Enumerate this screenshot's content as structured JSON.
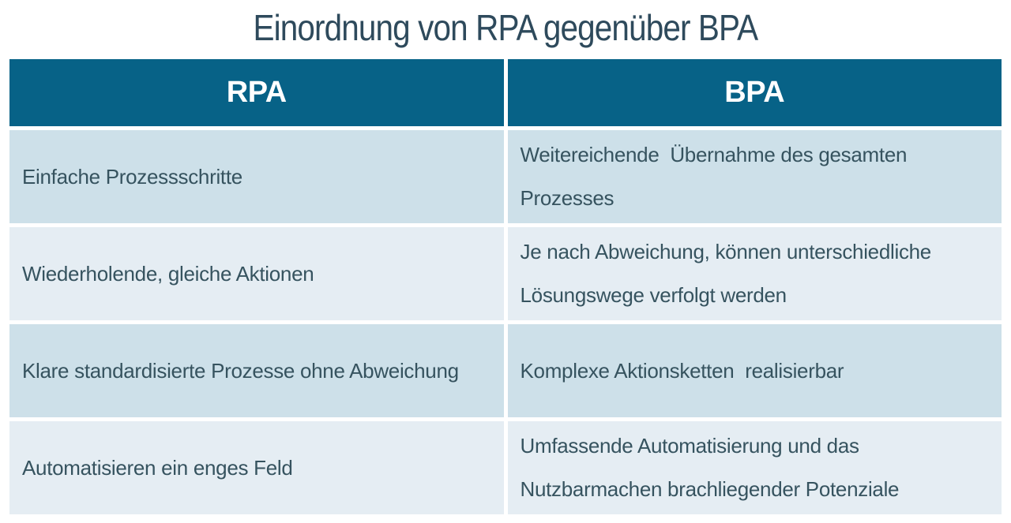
{
  "title": "Einordnung von RPA gegenüber BPA",
  "colors": {
    "header_bg": "#076287",
    "header_text": "#ffffff",
    "row_odd_bg": "#cde0e9",
    "row_even_bg": "#e5edf3",
    "body_text": "#36535f",
    "title_text": "#2e4a5c",
    "page_bg": "#ffffff"
  },
  "table": {
    "columns": [
      "RPA",
      "BPA"
    ],
    "rows": [
      {
        "rpa": "Einfache Prozessschritte",
        "bpa": "Weitereichende  Übernahme des gesamten Prozesses"
      },
      {
        "rpa": "Wiederholende, gleiche Aktionen",
        "bpa": "Je nach Abweichung, können unterschiedliche Lösungswege verfolgt werden"
      },
      {
        "rpa": "Klare standardisierte Prozesse ohne Abweichung",
        "bpa": "Komplexe Aktionsketten  realisierbar"
      },
      {
        "rpa": "Automatisieren ein enges Feld",
        "bpa": "Umfassende Automatisierung und das Nutzbarmachen brachliegender Potenziale"
      }
    ]
  }
}
